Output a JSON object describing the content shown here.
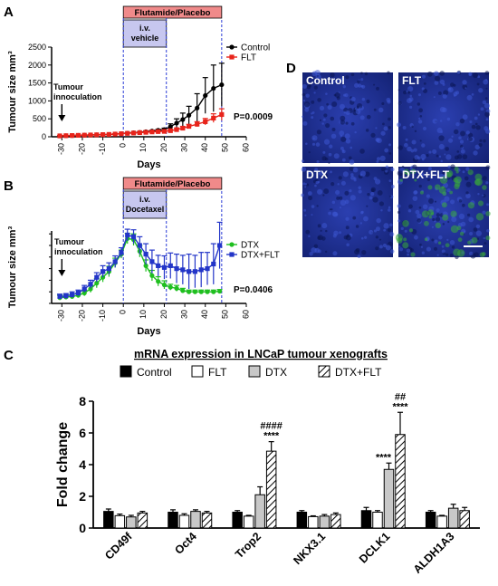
{
  "figure": {
    "panel_letters": {
      "a": "A",
      "b": "B",
      "c": "C",
      "d": "D"
    },
    "colors": {
      "control": "#000000",
      "flt": "#e8241b",
      "dtx": "#1fbf1f",
      "dtx_flt": "#2335c8",
      "treatment_bar": "#f08a8a",
      "vehicle_box": "#c7c7ef",
      "dashed_line": "#2b3bd6",
      "image_bg": "#1a2e8e",
      "image_green": "#39a83b"
    },
    "panel_d": {
      "labels": [
        "Control",
        "FLT",
        "DTX",
        "DTX+FLT"
      ]
    }
  },
  "chart_data": [
    {
      "id": "A",
      "type": "line",
      "title": "",
      "xlabel": "Days",
      "ylabel": "Tumour size mm³",
      "xlim": [
        -35,
        60
      ],
      "ylim": [
        0,
        2500
      ],
      "xticks": [
        -30,
        -20,
        -10,
        0,
        10,
        20,
        30,
        40,
        50,
        60
      ],
      "yticks": [
        0,
        500,
        1000,
        1500,
        2000,
        2500
      ],
      "treatment_label": "Flutamide/Placebo",
      "iv_label": "i.v.\nvehicle",
      "annotation": "Tumour\ninnoculation",
      "pvalue": "P=0.0009",
      "legend": [
        "Control",
        "FLT"
      ],
      "legend_position": "top-right",
      "series": [
        {
          "name": "Control",
          "x": [
            -31,
            -28,
            -25,
            -22,
            -19,
            -16,
            -13,
            -10,
            -7,
            -4,
            -1,
            2,
            5,
            8,
            11,
            14,
            17,
            20,
            23,
            26,
            29,
            32,
            36,
            40,
            44,
            48
          ],
          "y": [
            25,
            30,
            35,
            40,
            45,
            50,
            55,
            60,
            65,
            75,
            85,
            100,
            110,
            120,
            140,
            160,
            180,
            200,
            280,
            380,
            480,
            600,
            800,
            1150,
            1350,
            1450
          ],
          "err": [
            5,
            5,
            5,
            5,
            5,
            5,
            5,
            8,
            8,
            10,
            10,
            15,
            15,
            20,
            20,
            25,
            30,
            40,
            80,
            120,
            180,
            250,
            400,
            500,
            650,
            600
          ]
        },
        {
          "name": "FLT",
          "x": [
            -31,
            -28,
            -25,
            -22,
            -19,
            -16,
            -13,
            -10,
            -7,
            -4,
            -1,
            2,
            5,
            8,
            11,
            14,
            17,
            20,
            23,
            26,
            29,
            32,
            36,
            40,
            44,
            48
          ],
          "y": [
            25,
            30,
            35,
            40,
            45,
            50,
            55,
            60,
            65,
            75,
            85,
            95,
            105,
            115,
            125,
            135,
            145,
            150,
            170,
            200,
            240,
            290,
            350,
            420,
            520,
            620
          ],
          "err": [
            5,
            5,
            5,
            5,
            5,
            5,
            5,
            8,
            8,
            10,
            10,
            10,
            12,
            12,
            15,
            15,
            18,
            20,
            25,
            35,
            45,
            55,
            70,
            90,
            120,
            160
          ]
        }
      ]
    },
    {
      "id": "B",
      "type": "line",
      "title": "",
      "xlabel": "Days",
      "ylabel": "Tumour size mm³",
      "xlim": [
        -35,
        60
      ],
      "ylim": [
        0,
        125
      ],
      "xticks": [
        -30,
        -20,
        -10,
        0,
        10,
        20,
        30,
        40,
        50,
        60
      ],
      "treatment_label": "Flutamide/Placebo",
      "iv_label": "i.v.\nDocetaxel",
      "annotation": "Tumour\ninnoculation",
      "pvalue": "P=0.0406",
      "legend": [
        "DTX",
        "DTX+FLT"
      ],
      "legend_position": "top-right",
      "series": [
        {
          "name": "DTX",
          "x": [
            -31,
            -28,
            -25,
            -22,
            -19,
            -16,
            -13,
            -10,
            -7,
            -4,
            -1,
            2,
            5,
            8,
            11,
            14,
            17,
            20,
            23,
            26,
            29,
            32,
            35,
            38,
            41,
            44,
            47
          ],
          "y": [
            10,
            11,
            12,
            14,
            18,
            25,
            35,
            45,
            55,
            70,
            85,
            112,
            110,
            90,
            65,
            48,
            38,
            32,
            28,
            26,
            22,
            20,
            20,
            20,
            20,
            20,
            21
          ],
          "err": [
            4,
            4,
            4,
            4,
            5,
            6,
            8,
            8,
            9,
            8,
            7,
            9,
            10,
            10,
            10,
            9,
            8,
            7,
            5,
            5,
            4,
            3,
            3,
            3,
            3,
            3,
            3
          ]
        },
        {
          "name": "DTX+FLT",
          "x": [
            -31,
            -28,
            -25,
            -22,
            -19,
            -16,
            -13,
            -10,
            -7,
            -4,
            -1,
            2,
            5,
            8,
            11,
            14,
            17,
            20,
            23,
            26,
            29,
            32,
            35,
            38,
            41,
            44,
            47
          ],
          "y": [
            12,
            13,
            15,
            18,
            25,
            33,
            45,
            55,
            60,
            72,
            88,
            118,
            115,
            100,
            85,
            72,
            65,
            62,
            65,
            60,
            58,
            55,
            55,
            58,
            60,
            68,
            100
          ],
          "err": [
            4,
            4,
            5,
            5,
            6,
            7,
            8,
            10,
            10,
            10,
            8,
            10,
            12,
            15,
            18,
            20,
            18,
            20,
            22,
            25,
            25,
            30,
            28,
            30,
            28,
            35,
            40
          ]
        }
      ]
    },
    {
      "id": "C",
      "type": "bar",
      "title": "mRNA expression in LNCaP tumour xenografts",
      "xlabel": "",
      "ylabel": "Fold change",
      "ylim": [
        0,
        8
      ],
      "yticks": [
        0,
        2,
        4,
        6,
        8
      ],
      "categories": [
        "CD49f",
        "Oct4",
        "Trop2",
        "NKX3.1",
        "DCLK1",
        "ALDH1A3"
      ],
      "legend_position": "top",
      "series": [
        {
          "name": "Control",
          "values": [
            1.05,
            1.0,
            1.0,
            1.0,
            1.1,
            1.0
          ],
          "err": [
            0.15,
            0.15,
            0.1,
            0.1,
            0.2,
            0.1
          ]
        },
        {
          "name": "FLT",
          "values": [
            0.78,
            0.8,
            0.75,
            0.72,
            1.0,
            0.75
          ],
          "err": [
            0.1,
            0.1,
            0.05,
            0.05,
            0.1,
            0.05
          ]
        },
        {
          "name": "DTX",
          "values": [
            0.7,
            1.05,
            2.1,
            0.75,
            3.7,
            1.25
          ],
          "err": [
            0.1,
            0.1,
            0.5,
            0.1,
            0.4,
            0.25
          ]
        },
        {
          "name": "DTX+FLT",
          "values": [
            0.95,
            0.95,
            4.85,
            0.85,
            5.9,
            1.1
          ],
          "err": [
            0.1,
            0.1,
            0.6,
            0.1,
            1.4,
            0.2
          ]
        }
      ],
      "annotations": [
        {
          "category": "Trop2",
          "series": "DTX+FLT",
          "lines": [
            "####",
            "****"
          ]
        },
        {
          "category": "DCLK1",
          "series": "DTX",
          "lines": [
            "****"
          ]
        },
        {
          "category": "DCLK1",
          "series": "DTX+FLT",
          "lines": [
            "##",
            "****"
          ]
        }
      ]
    }
  ]
}
